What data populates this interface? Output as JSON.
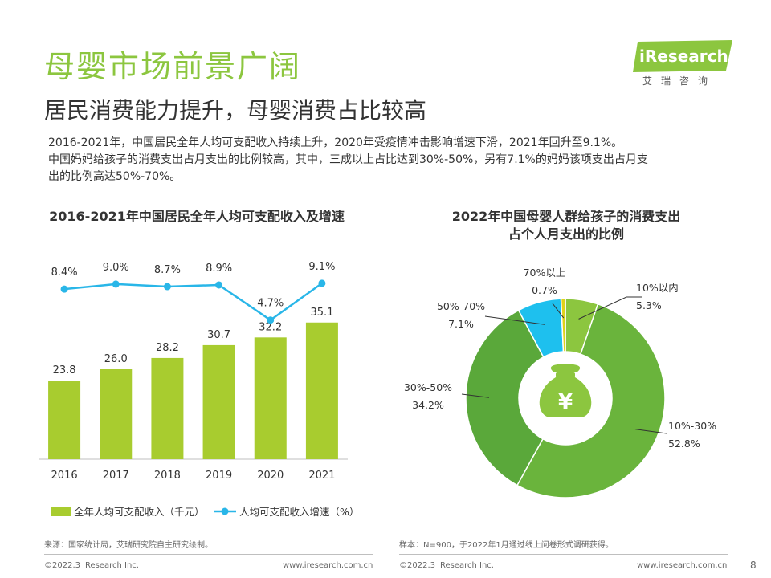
{
  "header": {
    "title": "母婴市场前景广阔",
    "subtitle": "居民消费能力提升，母婴消费占比较高",
    "desc_lines": [
      "2016-2021年，中国居民全年人均可支配收入持续上升，2020年受疫情冲击影响增速下滑，2021年回升至9.1%。",
      "中国妈妈给孩子的消费支出占月支出的比例较高，其中，三成以上占比达到30%-50%，另有7.1%的妈妈该项支出占月支",
      "出的比例高达50%-70%。"
    ]
  },
  "logo": {
    "text": "iResearch",
    "sub": "艾瑞咨询"
  },
  "colors": {
    "brand_green": "#8cc63f",
    "bar_green": "#a8cc2f",
    "line_blue": "#29b6e8",
    "pie": [
      "#8cc63f",
      "#6ab43c",
      "#5aa83a",
      "#1ec0ee",
      "#e0d21a"
    ]
  },
  "chart_data": [
    {
      "type": "bar",
      "title": "2016-2021年中国居民全年人均可支配收入及增速",
      "categories": [
        "2016",
        "2017",
        "2018",
        "2019",
        "2020",
        "2021"
      ],
      "series": [
        {
          "name": "全年人均可支配收入（千元）",
          "type": "bar",
          "values": [
            23.8,
            26.0,
            28.2,
            30.7,
            32.2,
            35.1
          ],
          "labels": [
            "23.8",
            "26.0",
            "28.2",
            "30.7",
            "32.2",
            "35.1"
          ]
        },
        {
          "name": "人均可支配收入增速（%）",
          "type": "line",
          "values": [
            8.4,
            9.0,
            8.7,
            8.9,
            4.7,
            9.1
          ],
          "labels": [
            "8.4%",
            "9.0%",
            "8.7%",
            "8.9%",
            "4.7%",
            "9.1%"
          ]
        }
      ],
      "legend": "bottom"
    },
    {
      "type": "pie",
      "title_lines": [
        "2022年中国母婴人群给孩子的消费支出",
        "占个人月支出的比例"
      ],
      "donut": true,
      "center_icon": "money-bag-yuan-icon",
      "slices": [
        {
          "label": "10%以内",
          "value": 5.3,
          "value_label": "5.3%"
        },
        {
          "label": "10%-30%",
          "value": 52.8,
          "value_label": "52.8%"
        },
        {
          "label": "30%-50%",
          "value": 34.2,
          "value_label": "34.2%"
        },
        {
          "label": "50%-70%",
          "value": 7.1,
          "value_label": "7.1%"
        },
        {
          "label": "70%以上",
          "value": 0.7,
          "value_label": "0.7%"
        }
      ]
    }
  ],
  "notes": {
    "left": "来源：国家统计局，艾瑞研究院自主研究绘制。",
    "right": "样本：N=900，于2022年1月通过线上问卷形式调研获得。"
  },
  "footer": {
    "copyright": "©2022.3 iResearch Inc.",
    "url": "www.iresearch.com.cn",
    "page": "8"
  }
}
